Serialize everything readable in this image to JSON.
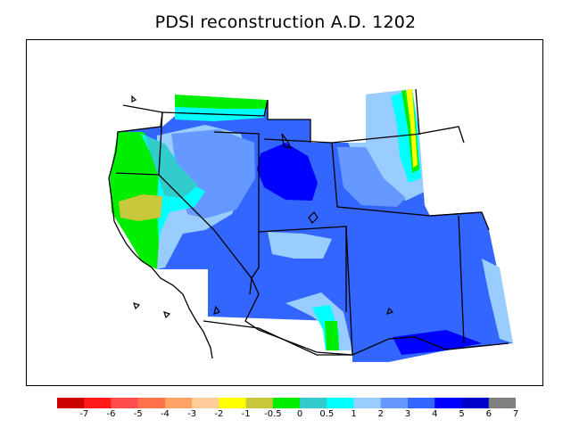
{
  "title": "PDSI reconstruction A.D. 1202",
  "colorbar": {
    "colors": [
      "#cc0000",
      "#ff1a1a",
      "#ff4d4d",
      "#ff704d",
      "#ffa366",
      "#ffcc99",
      "#ffff00",
      "#c8c83c",
      "#00ee00",
      "#33cccc",
      "#00ffff",
      "#99ccff",
      "#6699ff",
      "#3366ff",
      "#0000ff",
      "#0000cc",
      "#808080"
    ],
    "labels": [
      "-7",
      "-6",
      "-5",
      "-4",
      "-3",
      "-2",
      "-1",
      "-0.5",
      "0",
      "0.5",
      "1",
      "2",
      "3",
      "4",
      "5",
      "6",
      "7"
    ]
  },
  "palette": {
    "green": "#00ee00",
    "olive": "#c8c83c",
    "yellow": "#ffff00",
    "teal": "#33cccc",
    "cyan": "#00ffff",
    "light_blue": "#99ccff",
    "mid_blue": "#6699ff",
    "blue": "#3366ff",
    "deep_blue": "#0000ff"
  }
}
